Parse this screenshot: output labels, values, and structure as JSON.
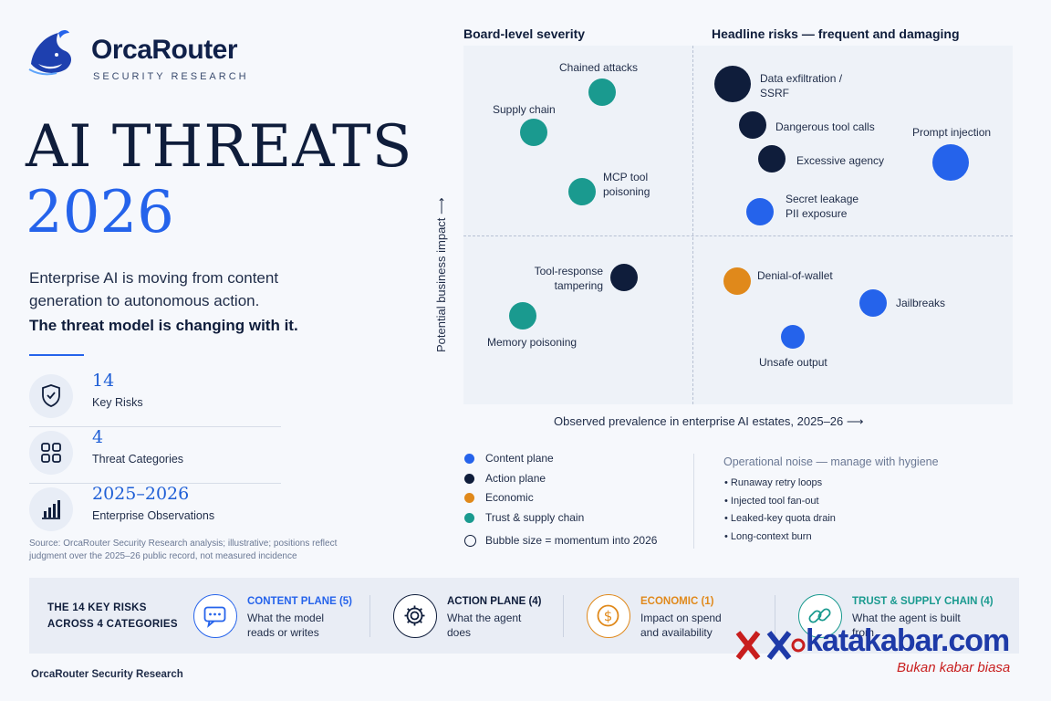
{
  "brand": {
    "name": "OrcaRouter",
    "subtitle": "SECURITY RESEARCH",
    "brand_color": "#2563eb",
    "navy": "#0f1d3b"
  },
  "title": {
    "line1": "AI THREATS",
    "line2": "2026"
  },
  "intro": {
    "text": "Enterprise AI is moving from content generation to autonomous action.",
    "bold": "The threat model is changing with it."
  },
  "stats": [
    {
      "value": "14",
      "label": "Key Risks",
      "icon": "shield-check-icon"
    },
    {
      "value": "4",
      "label": "Threat Categories",
      "icon": "grid-icon"
    },
    {
      "value": "2025–2026",
      "label": "Enterprise Observations",
      "icon": "bar-chart-icon"
    }
  ],
  "source": "Source: OrcaRouter Security Research analysis; illustrative; positions reflect judgment over the 2025–26 public record, not measured incidence",
  "matrix": {
    "quadrant_titles": {
      "top_left": "Board-level severity",
      "top_right": "Headline risks — frequent and damaging"
    },
    "x_label": "Observed prevalence in enterprise AI estates, 2025–26",
    "y_label": "Potential business impact",
    "colors": {
      "content_plane": "#2563eb",
      "action_plane": "#0f1d3b",
      "economic": "#e0891b",
      "trust_supply_chain": "#1a9a8f"
    },
    "risks": [
      {
        "label": "Chained attacks",
        "category": "trust_supply_chain",
        "momentum": "medium"
      },
      {
        "label": "Supply chain",
        "category": "trust_supply_chain",
        "momentum": "medium"
      },
      {
        "label": "MCP tool\npoisoning",
        "category": "trust_supply_chain",
        "momentum": "medium"
      },
      {
        "label": "Data exfiltration /\nSSRF",
        "category": "action_plane",
        "momentum": "high"
      },
      {
        "label": "Dangerous tool calls",
        "category": "action_plane",
        "momentum": "medium"
      },
      {
        "label": "Excessive agency",
        "category": "action_plane",
        "momentum": "medium"
      },
      {
        "label": "Prompt injection",
        "category": "content_plane",
        "momentum": "high"
      },
      {
        "label": "Secret leakage\nPII exposure",
        "category": "content_plane",
        "momentum": "medium"
      },
      {
        "label": "Tool-response\ntampering",
        "category": "action_plane",
        "momentum": "medium"
      },
      {
        "label": "Memory poisoning",
        "category": "trust_supply_chain",
        "momentum": "medium"
      },
      {
        "label": "Denial-of-wallet",
        "category": "economic",
        "momentum": "medium"
      },
      {
        "label": "Jailbreaks",
        "category": "content_plane",
        "momentum": "medium"
      },
      {
        "label": "Unsafe output",
        "category": "content_plane",
        "momentum": "low"
      }
    ]
  },
  "legend": {
    "items": [
      {
        "label": "Content plane",
        "color": "#2563eb"
      },
      {
        "label": "Action plane",
        "color": "#0f1d3b"
      },
      {
        "label": "Economic",
        "color": "#e0891b"
      },
      {
        "label": "Trust & supply chain",
        "color": "#1a9a8f"
      }
    ],
    "size_note": "Bubble size = momentum into 2026"
  },
  "noise": {
    "title": "Operational noise — manage with hygiene",
    "items": [
      "Runaway retry loops",
      "Injected tool fan-out",
      "Leaked-key quota drain",
      "Long-context burn"
    ]
  },
  "categories": {
    "title": "THE 14 KEY RISKS\nACROSS 4 CATEGORIES",
    "items": [
      {
        "name": "CONTENT PLANE (5)",
        "desc": "What the model\nreads or writes",
        "color": "#2563eb",
        "icon": "chat-icon"
      },
      {
        "name": "ACTION PLANE (4)",
        "desc": "What the agent\ndoes",
        "color": "#0f1d3b",
        "icon": "gear-icon"
      },
      {
        "name": "ECONOMIC (1)",
        "desc": "Impact on spend\nand availability",
        "color": "#e0891b",
        "icon": "dollar-icon"
      },
      {
        "name": "TRUST & SUPPLY CHAIN (4)",
        "desc": "What the agent is built\nfrom",
        "color": "#1a9a8f",
        "icon": "link-icon"
      }
    ]
  },
  "footer": "OrcaRouter Security Research",
  "watermark": {
    "brand": "katakabar.com",
    "tagline": "Bukan kabar biasa"
  }
}
